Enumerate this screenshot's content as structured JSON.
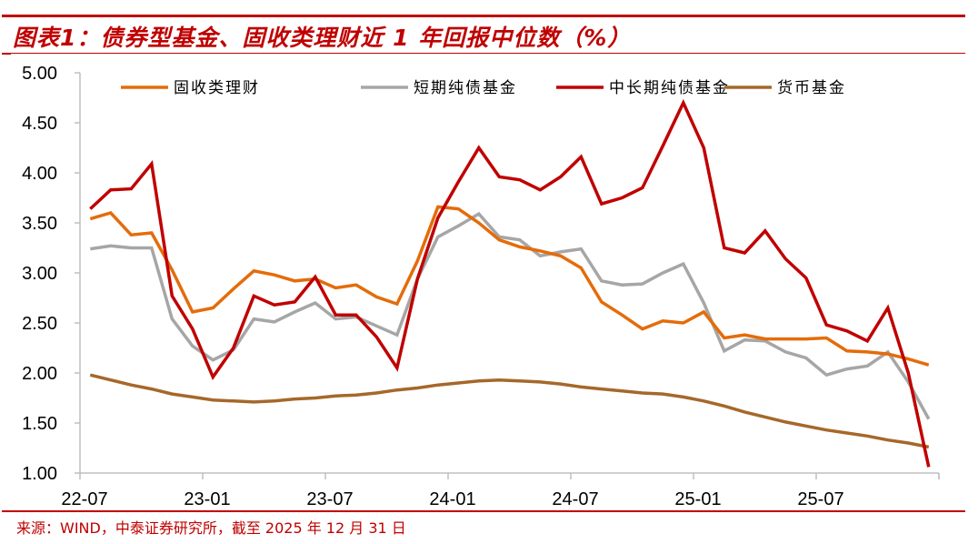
{
  "header": {
    "title": "图表1：债券型基金、固收类理财近 1 年回报中位数（%）"
  },
  "footer": {
    "source": "来源：WIND，中泰证券研究所，截至 2025 年 12 月 31 日"
  },
  "colors": {
    "accent": "#c00000",
    "axis": "#bfbfbf"
  },
  "chart_data": {
    "type": "line",
    "title": "图表1：债券型基金、固收类理财近 1 年回报中位数（%）",
    "xlabel": "",
    "ylabel": "",
    "ylim": [
      1.0,
      5.0
    ],
    "yticks": [
      "5.00",
      "4.50",
      "4.00",
      "3.50",
      "3.00",
      "2.50",
      "2.00",
      "1.50",
      "1.00"
    ],
    "xtick_labels": [
      "22-07",
      "23-01",
      "23-07",
      "24-01",
      "24-07",
      "25-01",
      "25-07"
    ],
    "grid": false,
    "legend_position": "top",
    "x": [
      "22-07",
      "22-08",
      "22-09",
      "22-10",
      "22-11",
      "22-12",
      "23-01",
      "23-02",
      "23-03",
      "23-04",
      "23-05",
      "23-06",
      "23-07",
      "23-08",
      "23-09",
      "23-10",
      "23-11",
      "23-12",
      "24-01",
      "24-02",
      "24-03",
      "24-04",
      "24-05",
      "24-06",
      "24-07",
      "24-08",
      "24-09",
      "24-10",
      "24-11",
      "24-12",
      "25-01",
      "25-02",
      "25-03",
      "25-04",
      "25-05",
      "25-06",
      "25-07",
      "25-08",
      "25-09",
      "25-10",
      "25-11",
      "25-12"
    ],
    "series": [
      {
        "name": "固收类理财",
        "color": "#e46c0a",
        "values": [
          3.54,
          3.6,
          3.38,
          3.4,
          3.03,
          2.61,
          2.65,
          2.84,
          3.02,
          2.98,
          2.92,
          2.94,
          2.85,
          2.88,
          2.76,
          2.69,
          3.12,
          3.66,
          3.64,
          3.5,
          3.33,
          3.26,
          3.22,
          3.17,
          3.05,
          2.71,
          2.58,
          2.44,
          2.52,
          2.5,
          2.61,
          2.35,
          2.38,
          2.34,
          2.34,
          2.34,
          2.35,
          2.22,
          2.21,
          2.19,
          2.14,
          2.08
        ]
      },
      {
        "name": "短期纯债基金",
        "color": "#a6a6a6",
        "values": [
          3.24,
          3.27,
          3.25,
          3.25,
          2.54,
          2.27,
          2.13,
          2.23,
          2.54,
          2.51,
          2.61,
          2.7,
          2.54,
          2.56,
          2.47,
          2.38,
          2.94,
          3.36,
          3.47,
          3.59,
          3.36,
          3.33,
          3.17,
          3.21,
          3.24,
          2.92,
          2.88,
          2.89,
          3.0,
          3.09,
          2.7,
          2.22,
          2.33,
          2.32,
          2.21,
          2.15,
          1.98,
          2.04,
          2.07,
          2.21,
          1.91,
          1.54
        ]
      },
      {
        "name": "中长期纯债基金",
        "color": "#c00000",
        "values": [
          3.64,
          3.83,
          3.84,
          4.09,
          2.77,
          2.44,
          1.96,
          2.25,
          2.77,
          2.68,
          2.71,
          2.96,
          2.58,
          2.58,
          2.36,
          2.05,
          2.94,
          3.55,
          3.91,
          4.25,
          3.96,
          3.93,
          3.83,
          3.96,
          4.16,
          3.69,
          3.75,
          3.85,
          4.27,
          4.7,
          4.25,
          3.25,
          3.2,
          3.42,
          3.14,
          2.95,
          2.48,
          2.42,
          2.32,
          2.65,
          2.0,
          1.06
        ]
      },
      {
        "name": "货币基金",
        "color": "#a5682a",
        "values": [
          1.98,
          1.93,
          1.88,
          1.84,
          1.79,
          1.76,
          1.73,
          1.72,
          1.71,
          1.72,
          1.74,
          1.75,
          1.77,
          1.78,
          1.8,
          1.83,
          1.85,
          1.88,
          1.9,
          1.92,
          1.93,
          1.92,
          1.91,
          1.89,
          1.86,
          1.84,
          1.82,
          1.8,
          1.79,
          1.76,
          1.72,
          1.67,
          1.61,
          1.56,
          1.51,
          1.47,
          1.43,
          1.4,
          1.37,
          1.33,
          1.3,
          1.26
        ]
      }
    ]
  }
}
